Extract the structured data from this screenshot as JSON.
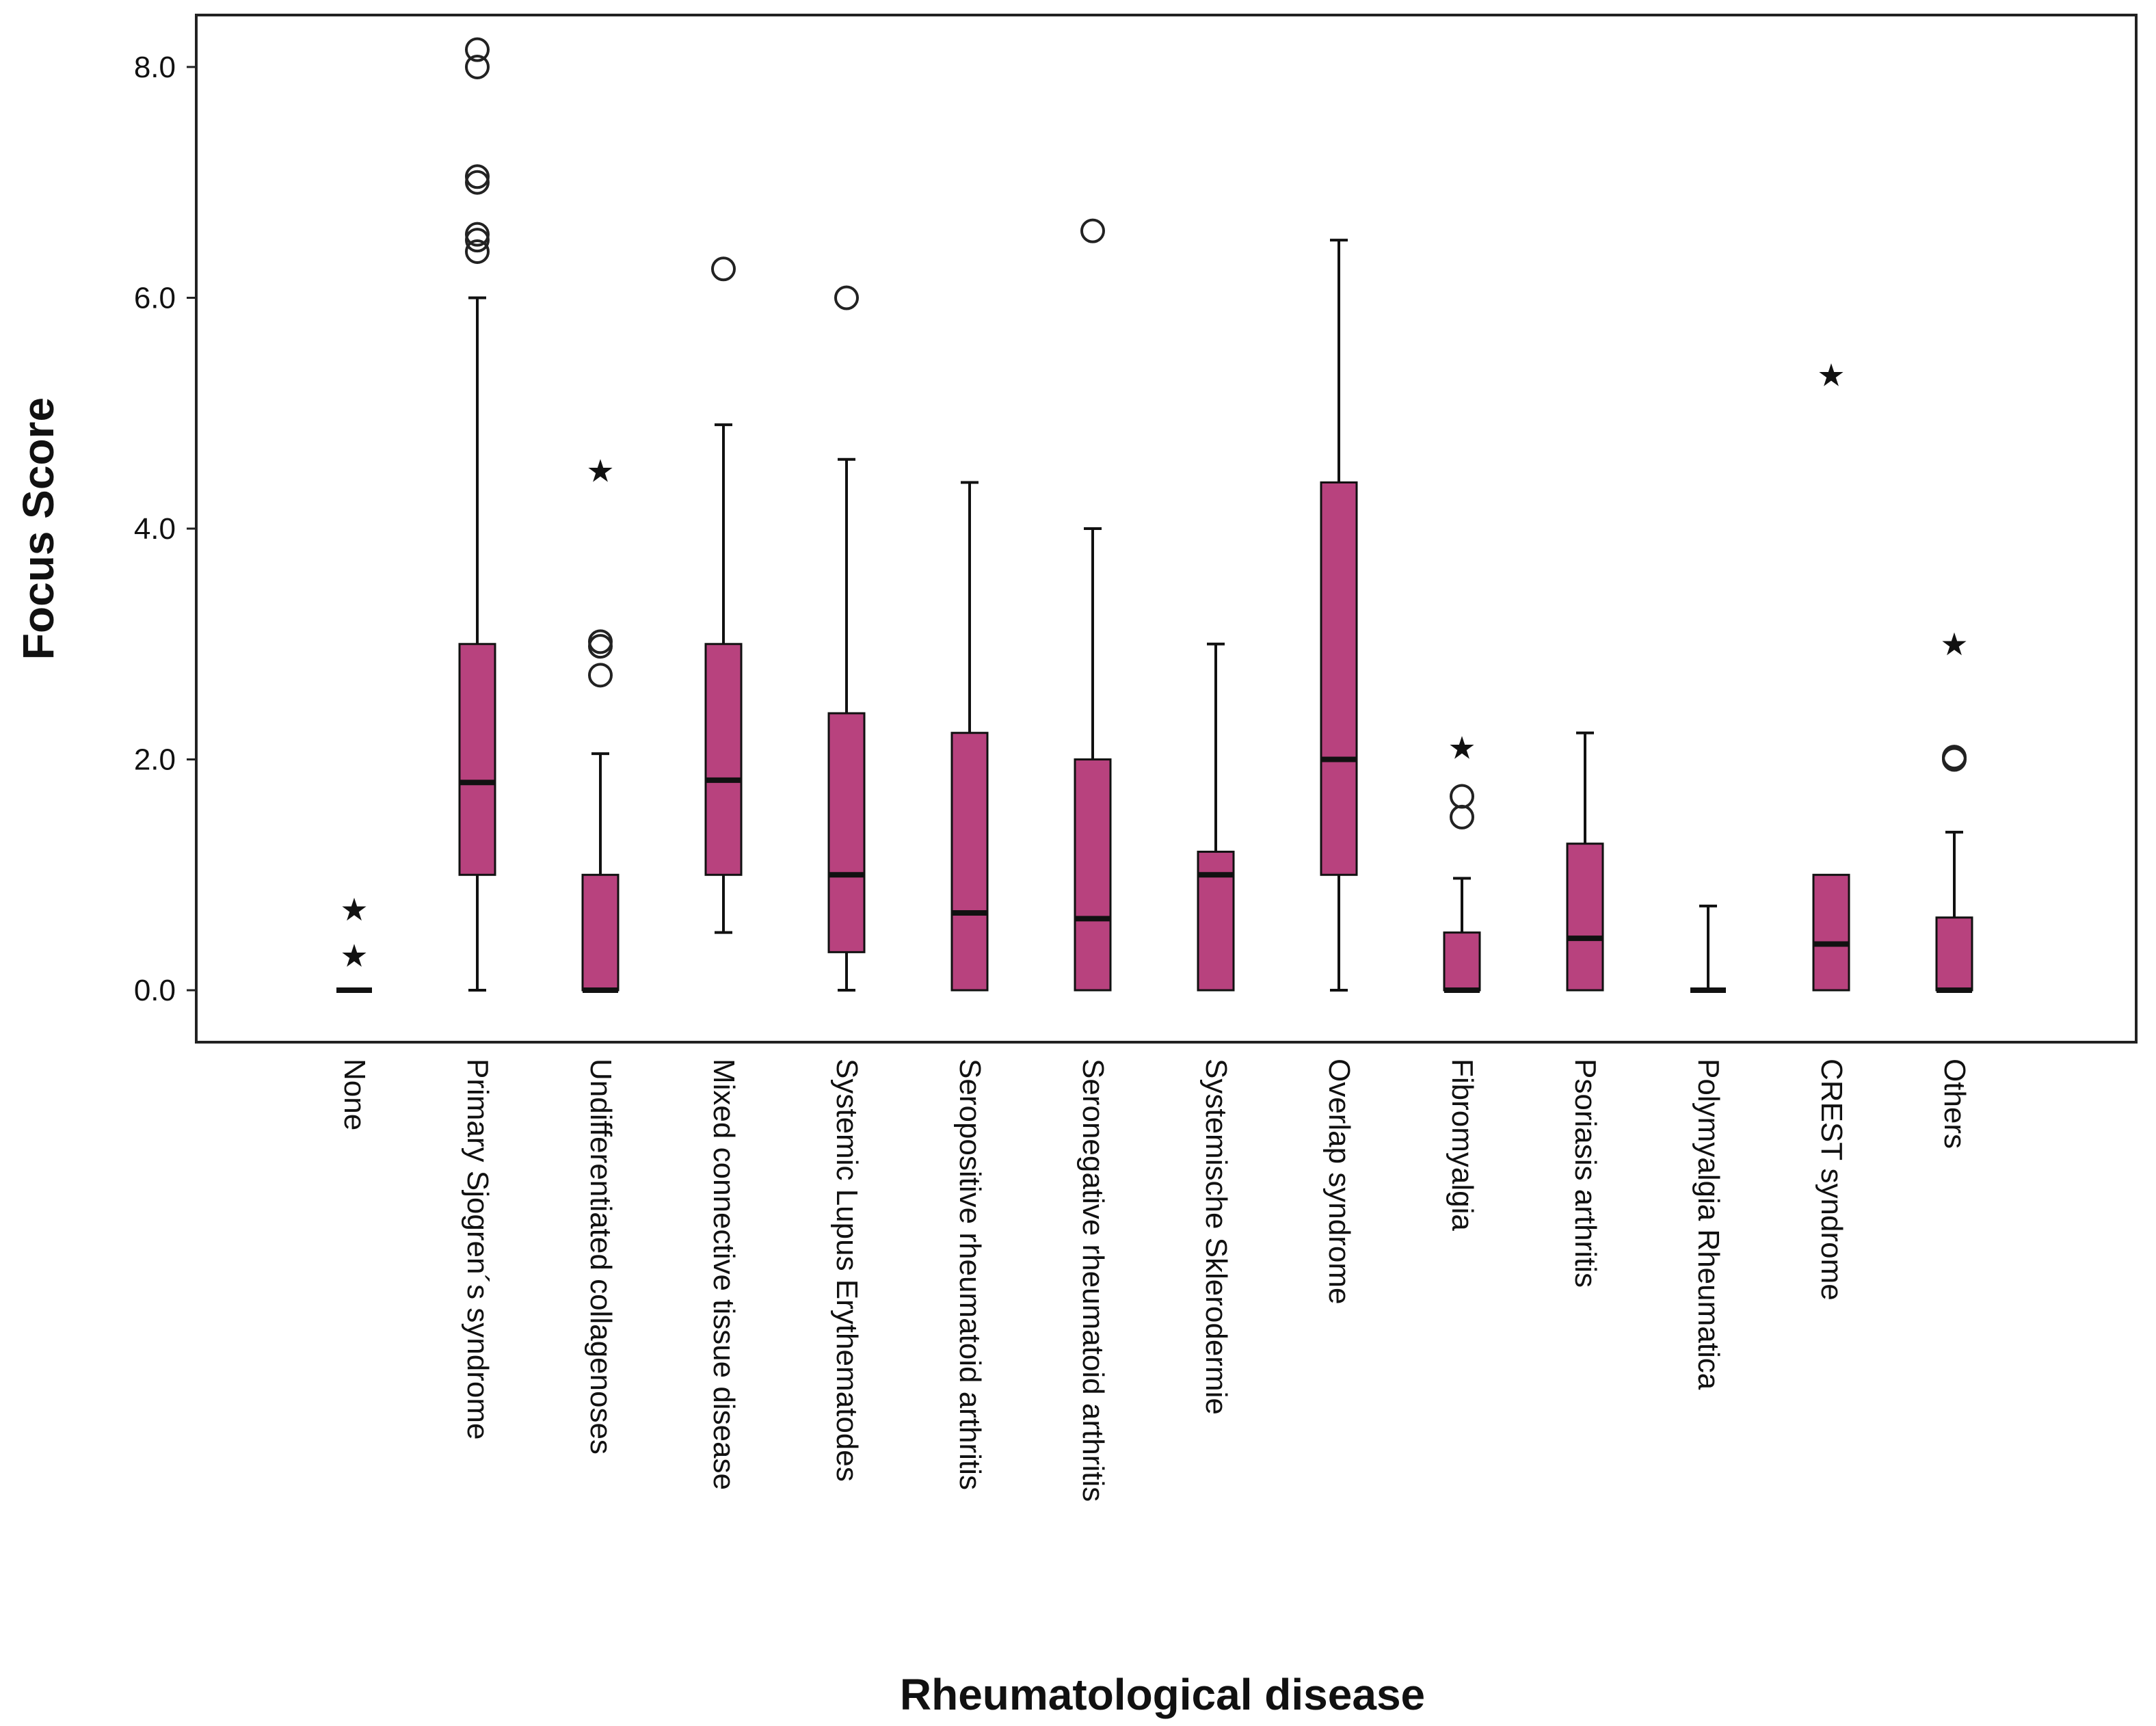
{
  "chart_data": {
    "type": "boxplot",
    "title": "",
    "xlabel": "Rheumatological disease",
    "ylabel": "Focus Score",
    "ylim": [
      -0.45,
      8.45
    ],
    "yticks": [
      0,
      2,
      4,
      6,
      8
    ],
    "ytick_labels": [
      "0.0",
      "2.0",
      "4.0",
      "6.0",
      "8.0"
    ],
    "grid": false,
    "box_color": "#b8427e",
    "categories": [
      "None",
      "Primary Sjogren´s syndrome",
      "Undifferentiated collagenoses",
      "Mixed connective tissue disease",
      "Systemic Lupus Erythematodes",
      "Seropositive rheumatoid arthritis",
      "Seronegative rheumatoid arthritis",
      "Systemische Sklerodermie",
      "Overlap syndrome",
      "Fibromyalgia",
      "Psoriasis arthritis",
      "Polymyalgia Rheumatica",
      "CREST syndrome",
      "Others"
    ],
    "boxes": [
      {
        "min": 0,
        "q1": 0,
        "median": 0,
        "q3": 0,
        "max": 0,
        "outliers": [],
        "extremes": [
          0.7,
          0.3
        ]
      },
      {
        "min": 0,
        "q1": 1.0,
        "median": 1.8,
        "q3": 3.0,
        "max": 6.0,
        "outliers": [
          8.15,
          8.0,
          7.05,
          7.0,
          6.55,
          6.5,
          6.4
        ],
        "extremes": []
      },
      {
        "min": 0,
        "q1": 0,
        "median": 0,
        "q3": 1.0,
        "max": 2.05,
        "outliers": [
          3.02,
          2.98,
          2.73
        ],
        "extremes": [
          4.5
        ]
      },
      {
        "min": 0.5,
        "q1": 1.0,
        "median": 1.82,
        "q3": 3.0,
        "max": 4.9,
        "outliers": [
          6.25
        ],
        "extremes": []
      },
      {
        "min": 0,
        "q1": 0.33,
        "median": 1.0,
        "q3": 2.4,
        "max": 4.6,
        "outliers": [
          6.0
        ],
        "extremes": []
      },
      {
        "min": 0,
        "q1": 0,
        "median": 0.67,
        "q3": 2.23,
        "max": 4.4,
        "outliers": [],
        "extremes": []
      },
      {
        "min": 0,
        "q1": 0,
        "median": 0.62,
        "q3": 2.0,
        "max": 4.0,
        "outliers": [
          6.58
        ],
        "extremes": []
      },
      {
        "min": 0,
        "q1": 0,
        "median": 1.0,
        "q3": 1.2,
        "max": 3.0,
        "outliers": [],
        "extremes": []
      },
      {
        "min": 0,
        "q1": 1.0,
        "median": 2.0,
        "q3": 4.4,
        "max": 6.5,
        "outliers": [],
        "extremes": []
      },
      {
        "min": 0,
        "q1": 0,
        "median": 0,
        "q3": 0.5,
        "max": 0.97,
        "outliers": [
          1.68,
          1.5
        ],
        "extremes": [
          2.1
        ]
      },
      {
        "min": 0,
        "q1": 0,
        "median": 0.45,
        "q3": 1.27,
        "max": 2.23,
        "outliers": [],
        "extremes": []
      },
      {
        "min": 0,
        "q1": 0,
        "median": 0,
        "q3": 0,
        "max": 0.73,
        "outliers": [],
        "extremes": []
      },
      {
        "min": 0,
        "q1": 0,
        "median": 0.4,
        "q3": 1.0,
        "max": 1.0,
        "outliers": [],
        "extremes": [
          5.33
        ]
      },
      {
        "min": 0,
        "q1": 0,
        "median": 0,
        "q3": 0.63,
        "max": 1.37,
        "outliers": [
          2.0,
          2.02
        ],
        "extremes": [
          3.0
        ]
      }
    ]
  }
}
